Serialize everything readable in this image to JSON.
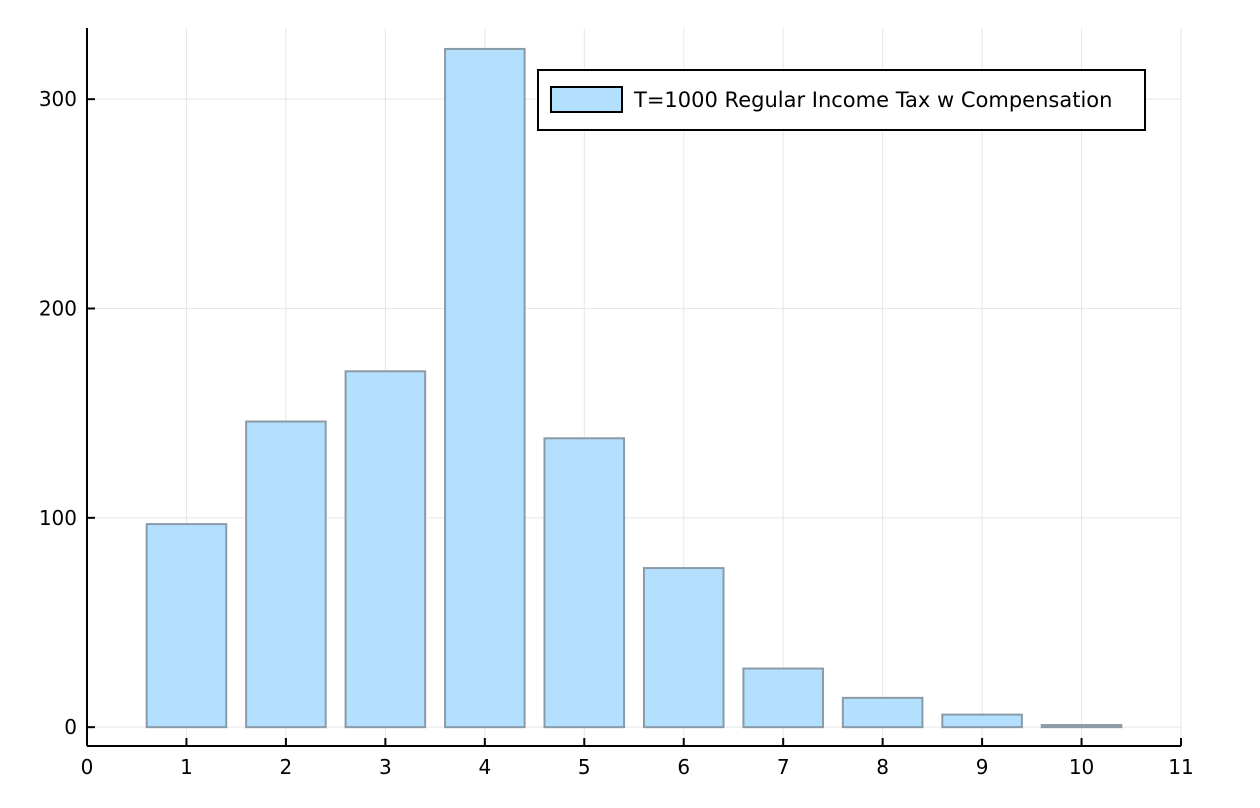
{
  "chart_data": {
    "type": "bar",
    "title": "",
    "xlabel": "",
    "ylabel": "",
    "x": [
      1,
      2,
      3,
      4,
      5,
      6,
      7,
      8,
      9,
      10
    ],
    "series": [
      {
        "name": "T=1000 Regular Income Tax w Compensation",
        "values": [
          97,
          146,
          170,
          324,
          138,
          76,
          28,
          14,
          6,
          1
        ],
        "color": "#b3e0ff",
        "edge_color": "#8a9aa6"
      }
    ],
    "bar_width": 0.8,
    "xlim": [
      0,
      11
    ],
    "ylim": [
      -9,
      334
    ],
    "xticks": [
      0,
      1,
      2,
      3,
      4,
      5,
      6,
      7,
      8,
      9,
      10,
      11
    ],
    "yticks": [
      0,
      100,
      200,
      300
    ],
    "grid": true,
    "legend_position": "top-right"
  }
}
